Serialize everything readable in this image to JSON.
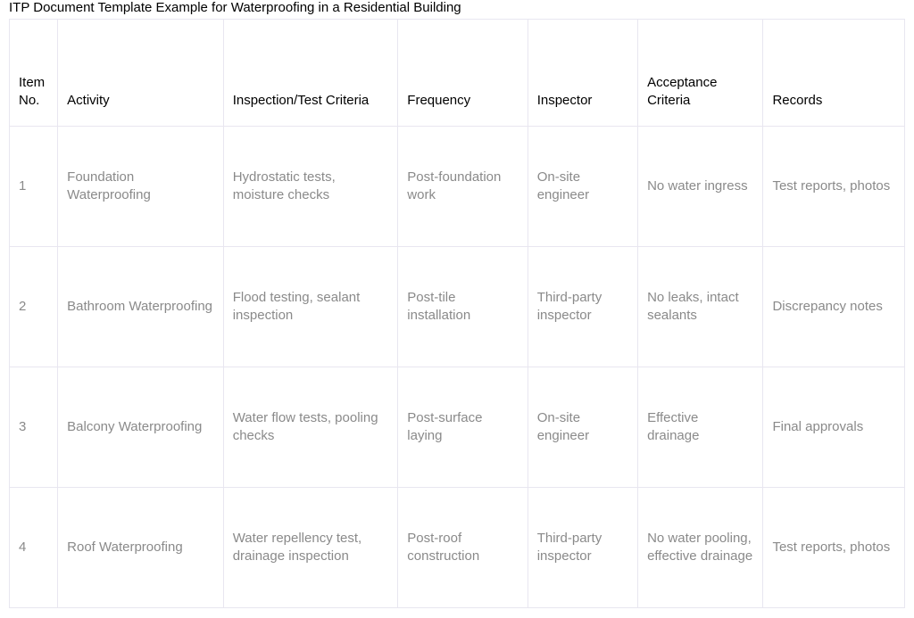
{
  "title": "ITP Document Template Example for Waterproofing in a Residential Building",
  "table": {
    "columns": [
      "Item No.",
      "Activity",
      "Inspection/Test Criteria",
      "Frequency",
      "Inspector",
      "Acceptance Criteria",
      "Records"
    ],
    "rows": [
      [
        "1",
        "Foundation Waterproofing",
        "Hydrostatic tests, moisture checks",
        "Post-foundation work",
        "On-site engineer",
        "No water ingress",
        "Test reports, photos"
      ],
      [
        "2",
        "Bathroom Waterproofing",
        "Flood testing, sealant inspection",
        "Post-tile installation",
        "Third-party inspector",
        "No leaks, intact sealants",
        "Discrepancy notes"
      ],
      [
        "3",
        "Balcony Waterproofing",
        "Water flow tests, pooling checks",
        "Post-surface laying",
        "On-site engineer",
        "Effective drainage",
        "Final approvals"
      ],
      [
        "4",
        "Roof Waterproofing",
        "Water repellency test, drainage inspection",
        "Post-roof construction",
        "Third-party inspector",
        "No water pooling, effective drainage",
        "Test reports, photos"
      ]
    ],
    "border_color": "#e8e6f0",
    "header_text_color": "#000000",
    "cell_text_color": "#8a8a8a",
    "background_color": "#ffffff",
    "font_size": 15
  }
}
